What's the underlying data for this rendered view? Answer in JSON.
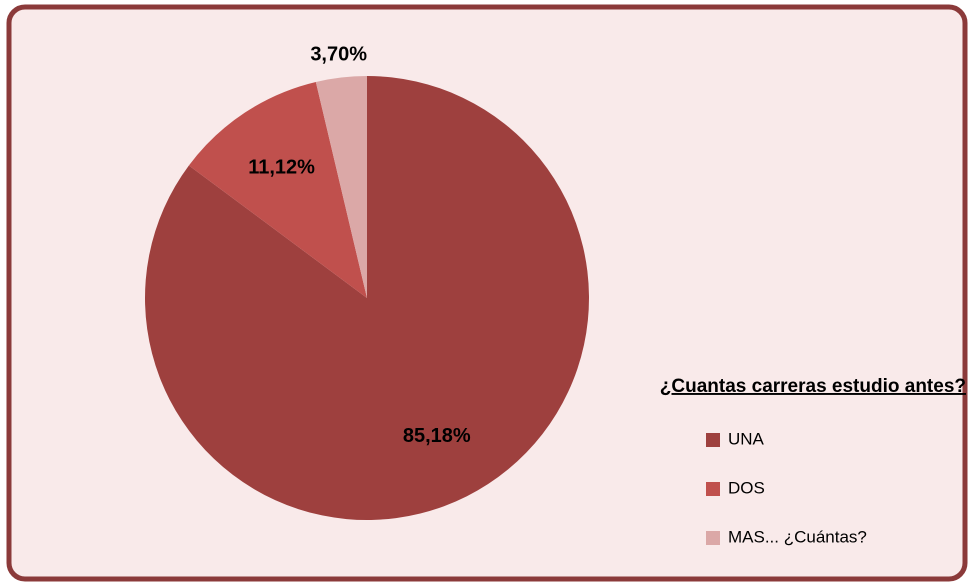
{
  "chart_data": {
    "type": "pie",
    "title": "¿Cuantas carreras estudio antes?",
    "categories": [
      "UNA",
      "DOS",
      "MAS... ¿Cuántas?"
    ],
    "values": [
      85.18,
      11.12,
      3.7
    ],
    "value_labels": [
      "85,18%",
      "11,12%",
      "3,70%"
    ],
    "colors": [
      "#9e403e",
      "#c0504d",
      "#dba8a7"
    ],
    "legend": "right"
  }
}
